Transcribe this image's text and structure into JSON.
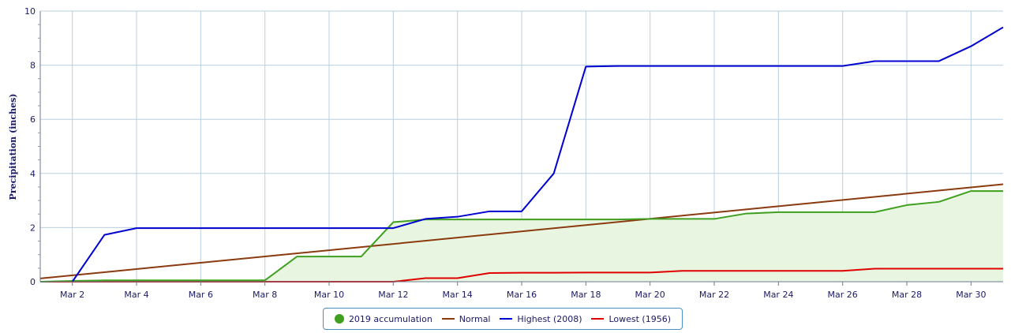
{
  "chart_data": {
    "type": "line",
    "title": "",
    "xlabel": "",
    "ylabel": "Precipitation (inches)",
    "xlim": [
      1,
      31
    ],
    "ylim": [
      0,
      10
    ],
    "x_ticks": [
      2,
      4,
      6,
      8,
      10,
      12,
      14,
      16,
      18,
      20,
      22,
      24,
      26,
      28,
      30
    ],
    "x_tick_labels": [
      "Mar 2",
      "Mar 4",
      "Mar 6",
      "Mar 8",
      "Mar 10",
      "Mar 12",
      "Mar 14",
      "Mar 16",
      "Mar 18",
      "Mar 20",
      "Mar 22",
      "Mar 24",
      "Mar 26",
      "Mar 28",
      "Mar 30"
    ],
    "y_ticks": [
      0,
      2,
      4,
      6,
      8,
      10
    ],
    "y_tick_labels": [
      "0",
      "2",
      "4",
      "6",
      "8",
      "10"
    ],
    "grid": true,
    "legend_position": "bottom-center",
    "series": [
      {
        "name": "2019 accumulation",
        "color": "#3f9f1f",
        "fill": "#e8f5e0",
        "marker": "circle",
        "x": [
          1,
          2,
          3,
          4,
          5,
          6,
          7,
          8,
          9,
          10,
          11,
          12,
          13,
          14,
          15,
          16,
          17,
          18,
          19,
          20,
          21,
          22,
          23,
          24,
          25,
          26,
          27,
          28,
          29,
          30,
          31
        ],
        "values": [
          0.0,
          0.03,
          0.05,
          0.05,
          0.05,
          0.05,
          0.05,
          0.05,
          0.93,
          0.93,
          0.93,
          2.2,
          2.3,
          2.3,
          2.3,
          2.3,
          2.3,
          2.3,
          2.3,
          2.32,
          2.32,
          2.32,
          2.52,
          2.57,
          2.57,
          2.57,
          2.57,
          2.83,
          2.95,
          3.35,
          3.35
        ]
      },
      {
        "name": "Normal",
        "color": "#8b3a0f",
        "x": [
          1,
          31
        ],
        "values": [
          0.12,
          3.6
        ]
      },
      {
        "name": "Highest (2008)",
        "color": "#0000d0",
        "x": [
          2,
          3,
          4,
          5,
          6,
          7,
          8,
          9,
          10,
          11,
          12,
          13,
          14,
          15,
          16,
          17,
          18,
          19,
          20,
          21,
          22,
          23,
          24,
          25,
          26,
          27,
          28,
          29,
          30,
          31
        ],
        "values": [
          0.0,
          1.73,
          1.98,
          1.98,
          1.98,
          1.98,
          1.98,
          1.98,
          1.98,
          1.98,
          1.98,
          2.32,
          2.4,
          2.6,
          2.6,
          4.0,
          7.95,
          7.97,
          7.97,
          7.97,
          7.97,
          7.97,
          7.97,
          7.97,
          7.97,
          8.15,
          8.15,
          8.15,
          8.7,
          9.4
        ]
      },
      {
        "name": "Lowest (1956)",
        "color": "#e00000",
        "x": [
          1,
          2,
          3,
          4,
          5,
          6,
          7,
          8,
          9,
          10,
          11,
          12,
          13,
          14,
          15,
          16,
          17,
          18,
          19,
          20,
          21,
          22,
          23,
          24,
          25,
          26,
          27,
          28,
          29,
          30,
          31
        ],
        "values": [
          0,
          0,
          0,
          0,
          0,
          0,
          0,
          0,
          0,
          0,
          0,
          0,
          0.13,
          0.13,
          0.32,
          0.33,
          0.33,
          0.34,
          0.34,
          0.34,
          0.4,
          0.4,
          0.4,
          0.4,
          0.4,
          0.4,
          0.48,
          0.48,
          0.48,
          0.48,
          0.48
        ]
      }
    ]
  }
}
